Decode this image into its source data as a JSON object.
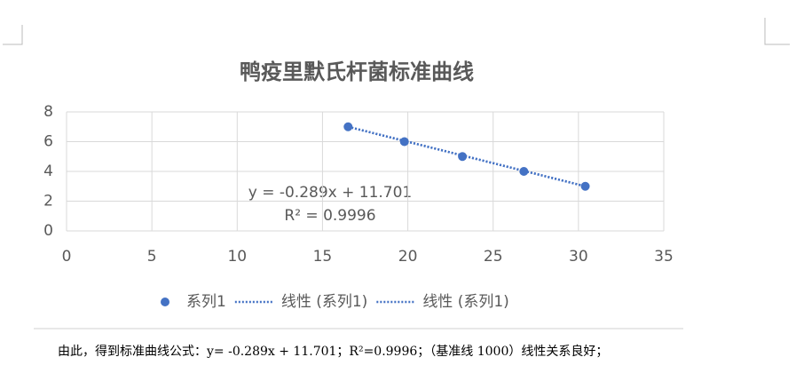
{
  "chart_data": {
    "type": "scatter",
    "title": "鸭疫里默氏杆菌标准曲线",
    "series": [
      {
        "name": "系列1",
        "color": "#4472c4",
        "x": [
          16.5,
          19.8,
          23.2,
          26.8,
          30.4
        ],
        "values": [
          7,
          6,
          5,
          4,
          3
        ]
      },
      {
        "name": "线性 (系列1)",
        "color": "#4472c4",
        "style": "dotted",
        "x": [
          16.5,
          30.4
        ],
        "values": [
          7,
          3
        ]
      },
      {
        "name": "线性 (系列1)",
        "color": "#4472c4",
        "style": "dotted",
        "x": [
          16.5,
          30.4
        ],
        "values": [
          7,
          3
        ]
      }
    ],
    "annotations": [
      "y = -0.289x + 11.701",
      "R² = 0.9996"
    ],
    "xlim": [
      0,
      35
    ],
    "xticks": [
      0,
      5,
      10,
      15,
      20,
      25,
      30,
      35
    ],
    "ylim": [
      0,
      8
    ],
    "yticks": [
      0,
      2,
      4,
      6,
      8
    ],
    "grid": true,
    "legend": "bottom"
  },
  "document": {
    "text": "由此，得到标准曲线公式：y= -0.289x + 11.701；R²=0.9996；（基准线 1000）线性关系良好；"
  }
}
